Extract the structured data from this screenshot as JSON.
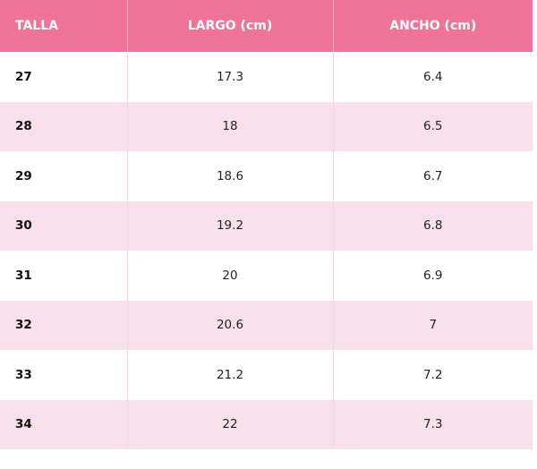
{
  "table": {
    "header": [
      "TALLA",
      "LARGO (cm)",
      "ANCHO (cm)"
    ],
    "rows": [
      [
        "27",
        "17.3",
        "6.4"
      ],
      [
        "28",
        "18",
        "6.5"
      ],
      [
        "29",
        "18.6",
        "6.7"
      ],
      [
        "30",
        "19.2",
        "6.8"
      ],
      [
        "31",
        "20",
        "6.9"
      ],
      [
        "32",
        "20.6",
        "7"
      ],
      [
        "33",
        "21.2",
        "7.2"
      ],
      [
        "34",
        "22",
        "7.3"
      ]
    ]
  }
}
